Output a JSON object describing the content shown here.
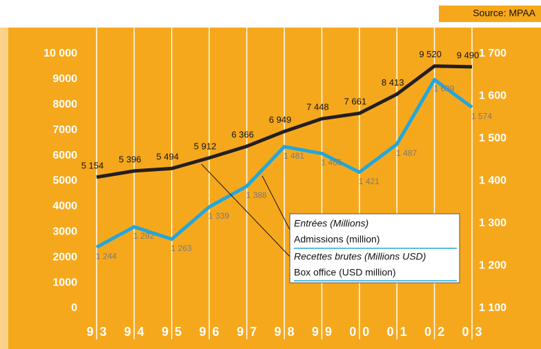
{
  "chart_data": {
    "type": "line",
    "source": "Source: MPAA",
    "categories": [
      "93",
      "94",
      "95",
      "96",
      "97",
      "98",
      "99",
      "00",
      "01",
      "02",
      "03"
    ],
    "series": [
      {
        "name": "Admissions (million)",
        "name_fr": "Entrées (Millions)",
        "color": "#22a7dc",
        "axis": "y2",
        "values": [
          1244,
          1292,
          1263,
          1339,
          1388,
          1481,
          1465,
          1421,
          1487,
          1639,
          1574
        ],
        "value_labels": [
          "1 244",
          "1 292",
          "1 263",
          "1 339",
          "1 388",
          "1 481",
          "1 465",
          "1 421",
          "1 487",
          "1 639",
          "1 574"
        ]
      },
      {
        "name": "Box office (USD million)",
        "name_fr": "Recettes brutes (Millions USD)",
        "color": "#231f20",
        "axis": "y",
        "values": [
          5154,
          5396,
          5494,
          5912,
          6366,
          6949,
          7448,
          7661,
          8413,
          9520,
          9490
        ],
        "value_labels": [
          "5 154",
          "5 396",
          "5 494",
          "5 912",
          "6 366",
          "6 949",
          "7 448",
          "7 661",
          "8 413",
          "9 520",
          "9 490"
        ]
      }
    ],
    "ylim": [
      0,
      10000
    ],
    "yticks": [
      0,
      1000,
      2000,
      3000,
      4000,
      5000,
      6000,
      7000,
      8000,
      9000,
      {
        "value": 10000,
        "label": "10 000"
      }
    ],
    "y2lim": [
      1100,
      1700
    ],
    "y2ticks": [
      {
        "value": 1100,
        "label": "1 100"
      },
      {
        "value": 1200,
        "label": "1 200"
      },
      {
        "value": 1300,
        "label": "1 300"
      },
      {
        "value": 1400,
        "label": "1 400"
      },
      {
        "value": 1500,
        "label": "1 500"
      },
      {
        "value": 1600,
        "label": "1 600"
      },
      {
        "value": 1700,
        "label": "1 700"
      }
    ]
  }
}
